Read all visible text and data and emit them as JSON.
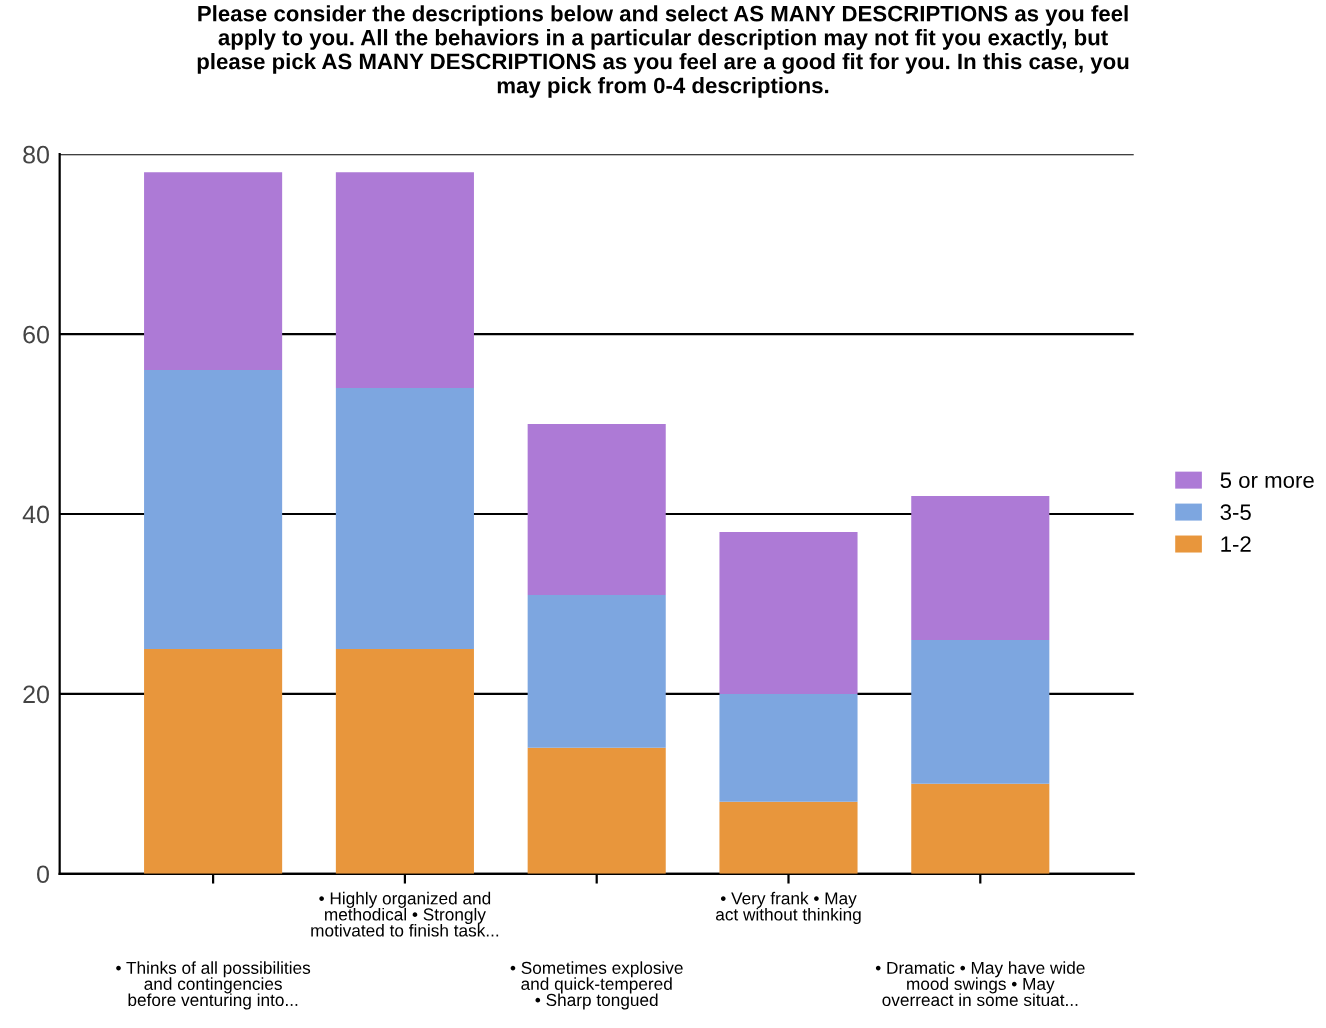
{
  "chart_data": {
    "type": "bar",
    "stacked": true,
    "title": "Please consider the descriptions below and select AS MANY DESCRIPTIONS as you feel\napply to you. All the behaviors in a particular description may not fit you exactly, but\nplease pick AS MANY DESCRIPTIONS as you feel are a good fit for you. In this case, you\nmay pick from 0-4 descriptions.",
    "categories": [
      "• Thinks of all possibilities\nand contingencies\nbefore venturing into...",
      "• Highly organized and\nmethodical • Strongly\nmotivated to finish task...",
      "• Sometimes explosive\nand quick-tempered\n• Sharp tongued",
      "• Very frank • May\nact without thinking",
      "• Dramatic • May have wide\nmood swings • May\noverreact in some situat..."
    ],
    "series": [
      {
        "name": "1-2",
        "color": "#e8963c",
        "values": [
          25,
          25,
          14,
          8,
          10
        ]
      },
      {
        "name": "3-5",
        "color": "#7da6e0",
        "values": [
          31,
          29,
          17,
          12,
          16
        ]
      },
      {
        "name": "5 or more",
        "color": "#ad7ad6",
        "values": [
          22,
          24,
          19,
          18,
          16
        ]
      }
    ],
    "ylim": [
      0,
      80
    ],
    "yticks": [
      0,
      20,
      40,
      60,
      80
    ],
    "grid": "y",
    "legend": "right"
  }
}
